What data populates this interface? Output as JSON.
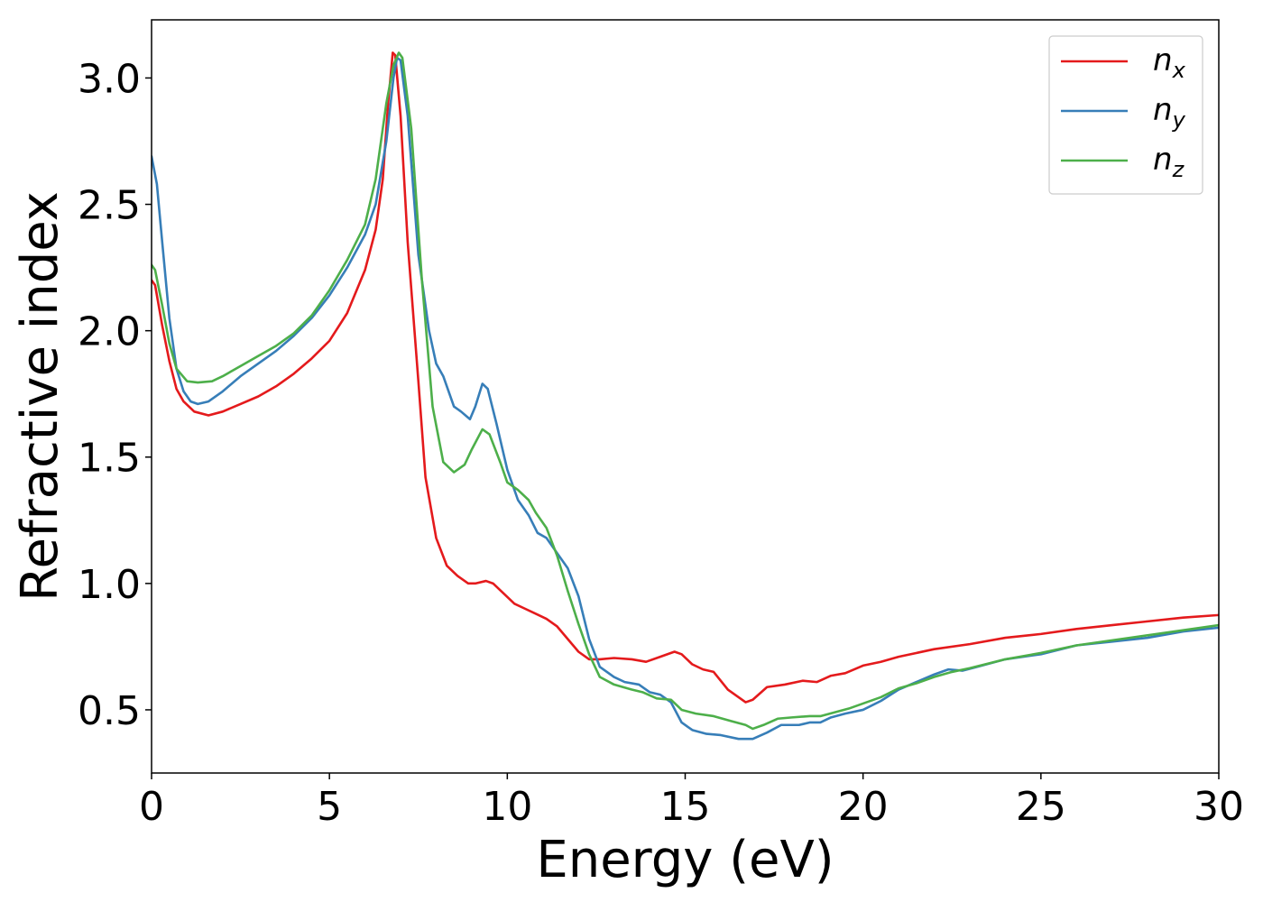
{
  "chart_data": {
    "type": "line",
    "title": "",
    "xlabel": "Energy (eV)",
    "ylabel": "Refractive index",
    "xlim": [
      0,
      30
    ],
    "ylim": [
      0.25,
      3.23
    ],
    "xticks": [
      0,
      5,
      10,
      15,
      20,
      25,
      30
    ],
    "yticks": [
      0.5,
      1.0,
      1.5,
      2.0,
      2.5,
      3.0
    ],
    "xtick_labels": [
      "0",
      "5",
      "10",
      "15",
      "20",
      "25",
      "30"
    ],
    "ytick_labels": [
      "0.5",
      "1.0",
      "1.5",
      "2.0",
      "2.5",
      "3.0"
    ],
    "grid": false,
    "legend_position": "top-right",
    "series": [
      {
        "name": "n_x",
        "label_main": "n",
        "label_sub": "x",
        "color": "#e41a1c",
        "points": [
          [
            0,
            2.2
          ],
          [
            0.1,
            2.18
          ],
          [
            0.3,
            2.02
          ],
          [
            0.5,
            1.88
          ],
          [
            0.7,
            1.77
          ],
          [
            0.9,
            1.72
          ],
          [
            1.2,
            1.68
          ],
          [
            1.6,
            1.665
          ],
          [
            2.0,
            1.68
          ],
          [
            2.5,
            1.71
          ],
          [
            3.0,
            1.74
          ],
          [
            3.5,
            1.78
          ],
          [
            4.0,
            1.83
          ],
          [
            4.5,
            1.89
          ],
          [
            5.0,
            1.96
          ],
          [
            5.5,
            2.07
          ],
          [
            6.0,
            2.24
          ],
          [
            6.3,
            2.4
          ],
          [
            6.5,
            2.6
          ],
          [
            6.65,
            2.9
          ],
          [
            6.78,
            3.1
          ],
          [
            6.85,
            3.09
          ],
          [
            7.0,
            2.85
          ],
          [
            7.2,
            2.35
          ],
          [
            7.5,
            1.8
          ],
          [
            7.7,
            1.42
          ],
          [
            8.0,
            1.18
          ],
          [
            8.3,
            1.07
          ],
          [
            8.6,
            1.03
          ],
          [
            8.9,
            1.0
          ],
          [
            9.1,
            1.0
          ],
          [
            9.4,
            1.01
          ],
          [
            9.6,
            1.0
          ],
          [
            9.9,
            0.96
          ],
          [
            10.2,
            0.92
          ],
          [
            10.5,
            0.9
          ],
          [
            10.8,
            0.88
          ],
          [
            11.1,
            0.86
          ],
          [
            11.4,
            0.83
          ],
          [
            11.7,
            0.78
          ],
          [
            12.0,
            0.73
          ],
          [
            12.3,
            0.7
          ],
          [
            12.6,
            0.7
          ],
          [
            13.0,
            0.705
          ],
          [
            13.5,
            0.7
          ],
          [
            13.9,
            0.69
          ],
          [
            14.3,
            0.71
          ],
          [
            14.7,
            0.73
          ],
          [
            14.9,
            0.72
          ],
          [
            15.2,
            0.68
          ],
          [
            15.5,
            0.66
          ],
          [
            15.8,
            0.65
          ],
          [
            16.2,
            0.58
          ],
          [
            16.7,
            0.53
          ],
          [
            16.9,
            0.54
          ],
          [
            17.3,
            0.59
          ],
          [
            17.8,
            0.6
          ],
          [
            18.3,
            0.615
          ],
          [
            18.7,
            0.61
          ],
          [
            19.1,
            0.635
          ],
          [
            19.5,
            0.645
          ],
          [
            20.0,
            0.675
          ],
          [
            20.5,
            0.69
          ],
          [
            21.0,
            0.71
          ],
          [
            22.0,
            0.74
          ],
          [
            23.0,
            0.76
          ],
          [
            24.0,
            0.785
          ],
          [
            25.0,
            0.8
          ],
          [
            26.0,
            0.82
          ],
          [
            27.0,
            0.835
          ],
          [
            28.0,
            0.85
          ],
          [
            29.0,
            0.865
          ],
          [
            30.0,
            0.875
          ]
        ]
      },
      {
        "name": "n_y",
        "label_main": "n",
        "label_sub": "y",
        "color": "#377eb8",
        "points": [
          [
            0,
            2.69
          ],
          [
            0.15,
            2.58
          ],
          [
            0.3,
            2.35
          ],
          [
            0.5,
            2.05
          ],
          [
            0.7,
            1.85
          ],
          [
            0.9,
            1.76
          ],
          [
            1.1,
            1.72
          ],
          [
            1.3,
            1.71
          ],
          [
            1.6,
            1.72
          ],
          [
            2.0,
            1.76
          ],
          [
            2.5,
            1.82
          ],
          [
            3.0,
            1.87
          ],
          [
            3.5,
            1.92
          ],
          [
            4.0,
            1.98
          ],
          [
            4.5,
            2.05
          ],
          [
            5.0,
            2.14
          ],
          [
            5.5,
            2.25
          ],
          [
            6.0,
            2.38
          ],
          [
            6.3,
            2.5
          ],
          [
            6.6,
            2.75
          ],
          [
            6.8,
            3.0
          ],
          [
            6.9,
            3.08
          ],
          [
            7.0,
            3.07
          ],
          [
            7.2,
            2.85
          ],
          [
            7.5,
            2.3
          ],
          [
            7.8,
            2.0
          ],
          [
            8.0,
            1.87
          ],
          [
            8.2,
            1.82
          ],
          [
            8.5,
            1.7
          ],
          [
            8.7,
            1.68
          ],
          [
            8.95,
            1.65
          ],
          [
            9.1,
            1.7
          ],
          [
            9.3,
            1.79
          ],
          [
            9.45,
            1.77
          ],
          [
            9.7,
            1.63
          ],
          [
            10.0,
            1.45
          ],
          [
            10.3,
            1.33
          ],
          [
            10.6,
            1.27
          ],
          [
            10.85,
            1.2
          ],
          [
            11.1,
            1.18
          ],
          [
            11.4,
            1.12
          ],
          [
            11.7,
            1.06
          ],
          [
            12.0,
            0.95
          ],
          [
            12.3,
            0.78
          ],
          [
            12.6,
            0.67
          ],
          [
            13.0,
            0.63
          ],
          [
            13.3,
            0.61
          ],
          [
            13.7,
            0.6
          ],
          [
            14.0,
            0.57
          ],
          [
            14.3,
            0.56
          ],
          [
            14.6,
            0.53
          ],
          [
            14.9,
            0.45
          ],
          [
            15.2,
            0.42
          ],
          [
            15.6,
            0.405
          ],
          [
            16.0,
            0.4
          ],
          [
            16.5,
            0.385
          ],
          [
            16.9,
            0.385
          ],
          [
            17.3,
            0.41
          ],
          [
            17.7,
            0.44
          ],
          [
            18.2,
            0.44
          ],
          [
            18.5,
            0.45
          ],
          [
            18.8,
            0.45
          ],
          [
            19.1,
            0.47
          ],
          [
            19.5,
            0.485
          ],
          [
            20.0,
            0.5
          ],
          [
            20.5,
            0.535
          ],
          [
            21.0,
            0.58
          ],
          [
            21.5,
            0.61
          ],
          [
            22.0,
            0.64
          ],
          [
            22.4,
            0.66
          ],
          [
            22.8,
            0.655
          ],
          [
            23.2,
            0.67
          ],
          [
            24.0,
            0.7
          ],
          [
            25.0,
            0.72
          ],
          [
            26.0,
            0.755
          ],
          [
            27.0,
            0.77
          ],
          [
            28.0,
            0.785
          ],
          [
            29.0,
            0.81
          ],
          [
            30.0,
            0.825
          ]
        ]
      },
      {
        "name": "n_z",
        "label_main": "n",
        "label_sub": "z",
        "color": "#4daf4a",
        "points": [
          [
            0,
            2.26
          ],
          [
            0.1,
            2.24
          ],
          [
            0.3,
            2.1
          ],
          [
            0.5,
            1.95
          ],
          [
            0.7,
            1.85
          ],
          [
            1.0,
            1.8
          ],
          [
            1.3,
            1.795
          ],
          [
            1.7,
            1.8
          ],
          [
            2.0,
            1.82
          ],
          [
            2.5,
            1.86
          ],
          [
            3.0,
            1.9
          ],
          [
            3.5,
            1.94
          ],
          [
            4.0,
            1.99
          ],
          [
            4.5,
            2.06
          ],
          [
            5.0,
            2.16
          ],
          [
            5.5,
            2.28
          ],
          [
            6.0,
            2.42
          ],
          [
            6.3,
            2.6
          ],
          [
            6.6,
            2.9
          ],
          [
            6.8,
            3.05
          ],
          [
            6.95,
            3.1
          ],
          [
            7.05,
            3.08
          ],
          [
            7.3,
            2.8
          ],
          [
            7.6,
            2.2
          ],
          [
            7.9,
            1.7
          ],
          [
            8.2,
            1.48
          ],
          [
            8.5,
            1.44
          ],
          [
            8.8,
            1.47
          ],
          [
            9.0,
            1.53
          ],
          [
            9.3,
            1.61
          ],
          [
            9.5,
            1.59
          ],
          [
            9.8,
            1.48
          ],
          [
            10.0,
            1.4
          ],
          [
            10.3,
            1.37
          ],
          [
            10.6,
            1.33
          ],
          [
            10.8,
            1.28
          ],
          [
            11.1,
            1.22
          ],
          [
            11.4,
            1.11
          ],
          [
            11.7,
            0.97
          ],
          [
            12.0,
            0.84
          ],
          [
            12.3,
            0.72
          ],
          [
            12.6,
            0.63
          ],
          [
            13.0,
            0.6
          ],
          [
            13.5,
            0.58
          ],
          [
            13.8,
            0.57
          ],
          [
            14.2,
            0.545
          ],
          [
            14.6,
            0.54
          ],
          [
            14.9,
            0.5
          ],
          [
            15.3,
            0.485
          ],
          [
            15.8,
            0.475
          ],
          [
            16.3,
            0.455
          ],
          [
            16.7,
            0.44
          ],
          [
            16.9,
            0.425
          ],
          [
            17.2,
            0.44
          ],
          [
            17.6,
            0.465
          ],
          [
            18.0,
            0.47
          ],
          [
            18.5,
            0.475
          ],
          [
            18.8,
            0.475
          ],
          [
            19.2,
            0.49
          ],
          [
            19.6,
            0.505
          ],
          [
            20.0,
            0.525
          ],
          [
            20.5,
            0.55
          ],
          [
            21.0,
            0.585
          ],
          [
            21.5,
            0.605
          ],
          [
            22.0,
            0.63
          ],
          [
            22.5,
            0.65
          ],
          [
            23.0,
            0.665
          ],
          [
            24.0,
            0.7
          ],
          [
            25.0,
            0.725
          ],
          [
            26.0,
            0.755
          ],
          [
            27.0,
            0.775
          ],
          [
            28.0,
            0.795
          ],
          [
            29.0,
            0.815
          ],
          [
            30.0,
            0.835
          ]
        ]
      }
    ]
  }
}
